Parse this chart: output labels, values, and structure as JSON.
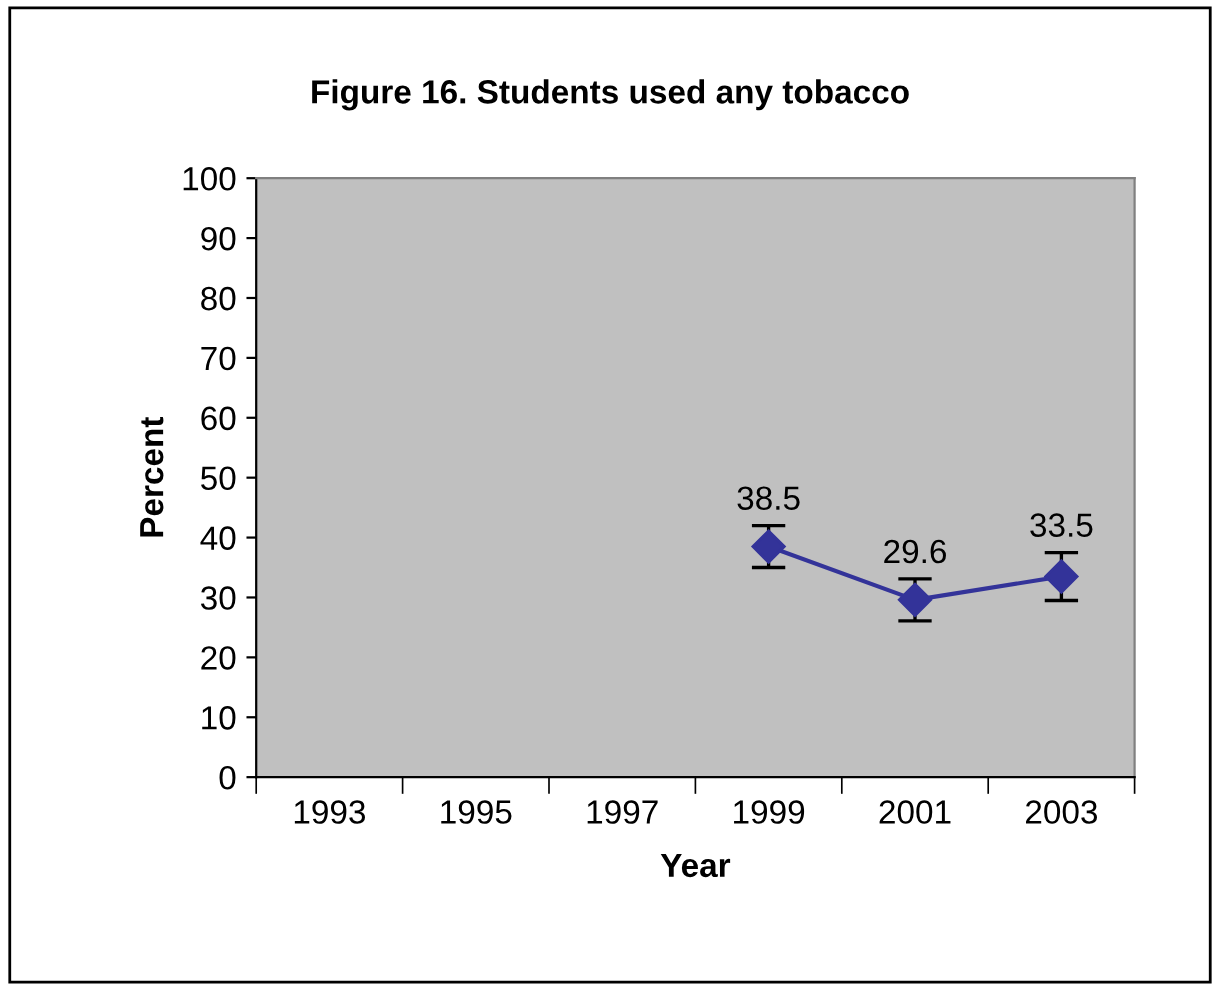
{
  "chart_data": {
    "type": "line",
    "title": "Figure 16. Students used any tobacco",
    "xlabel": "Year",
    "ylabel": "Percent",
    "categories": [
      "1993",
      "1995",
      "1997",
      "1999",
      "2001",
      "2003"
    ],
    "series": [
      {
        "color": "#333399",
        "values": [
          null,
          null,
          null,
          38.5,
          29.6,
          33.5
        ],
        "errors": [
          null,
          null,
          null,
          3.5,
          3.5,
          4
        ]
      }
    ],
    "ylim": [
      0,
      100
    ],
    "yticks": [
      0,
      10,
      20,
      30,
      40,
      50,
      60,
      70,
      80,
      90,
      100
    ],
    "data_labels": true,
    "marker": "diamond",
    "line_style": "solid",
    "grid": false,
    "legend": false
  }
}
